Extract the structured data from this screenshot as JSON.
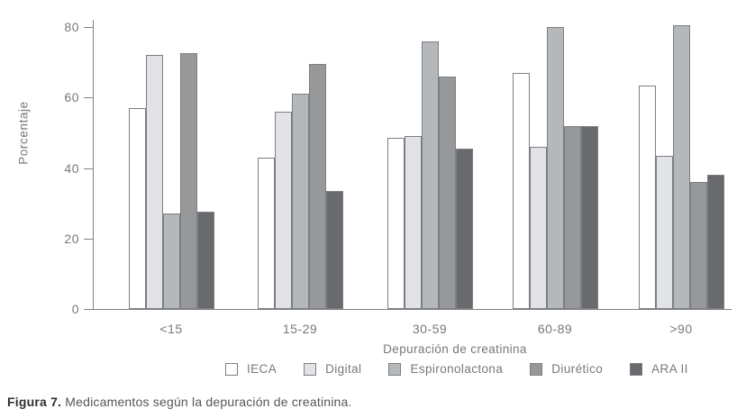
{
  "chart_data": {
    "type": "bar",
    "title": "",
    "categories": [
      "<15",
      "15-29",
      "30-59",
      "60-89",
      ">90"
    ],
    "series": [
      {
        "name": "IECA",
        "color": "#ffffff",
        "values": [
          57,
          43,
          48.5,
          67,
          63.5
        ]
      },
      {
        "name": "Digital",
        "color": "#e1e3e6",
        "values": [
          72,
          56,
          49,
          46,
          43.5
        ]
      },
      {
        "name": "Espironolactona",
        "color": "#b5b8ba",
        "values": [
          27,
          61,
          76,
          80,
          80.5
        ]
      },
      {
        "name": "Diurético",
        "color": "#97989a",
        "values": [
          72.5,
          69.5,
          66,
          52,
          36
        ]
      },
      {
        "name": "ARA II",
        "color": "#696a6e",
        "values": [
          27.5,
          33.5,
          45.5,
          52,
          38
        ]
      }
    ],
    "xlabel": "Depuración de creatinina",
    "ylabel": "Porcentaje",
    "ylim": [
      0,
      80
    ],
    "yticks": [
      0,
      20,
      40,
      60,
      80
    ],
    "grid": false,
    "legend_position": "bottom"
  },
  "caption": {
    "prefix": "Figura 7.",
    "text": " Medicamentos según la depuración de creatinina."
  }
}
